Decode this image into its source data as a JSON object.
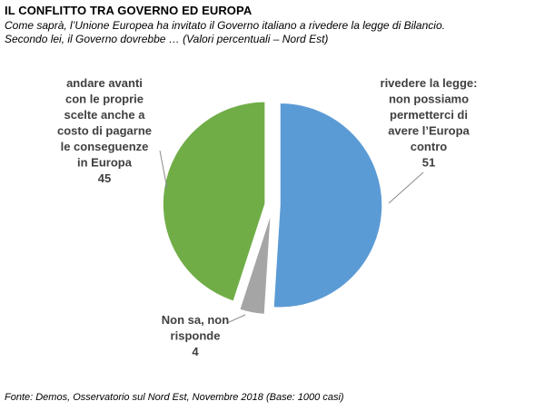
{
  "header": {
    "title": "IL CONFLITTO TRA GOVERNO ED EUROPA",
    "subtitle_line1": "Come saprà, l’Unione Europea ha invitato il Governo italiano a rivedere la legge di Bilancio.",
    "subtitle_line2": "Secondo lei, il Governo dovrebbe … (Valori percentuali – Nord Est)"
  },
  "footer": {
    "source": "Fonte: Demos, Osservatorio sul Nord Est, Novembre  2018 (Base: 1000 casi)"
  },
  "chart_data": {
    "type": "pie",
    "title": "IL CONFLITTO TRA GOVERNO ED EUROPA",
    "legend": "none",
    "slices": [
      {
        "label_lines": [
          "rivedere la legge:",
          "non possiamo",
          "permetterci di",
          "avere l’Europa",
          "contro"
        ],
        "value": 51,
        "color": "#5B9BD5"
      },
      {
        "label_lines": [
          "Non sa, non",
          "risponde"
        ],
        "value": 4,
        "color": "#A5A5A5"
      },
      {
        "label_lines": [
          "andare avanti",
          "con le proprie",
          "scelte anche a",
          "costo di pagarne",
          "le conseguenze",
          "in Europa"
        ],
        "value": 45,
        "color": "#70AD47"
      }
    ]
  }
}
